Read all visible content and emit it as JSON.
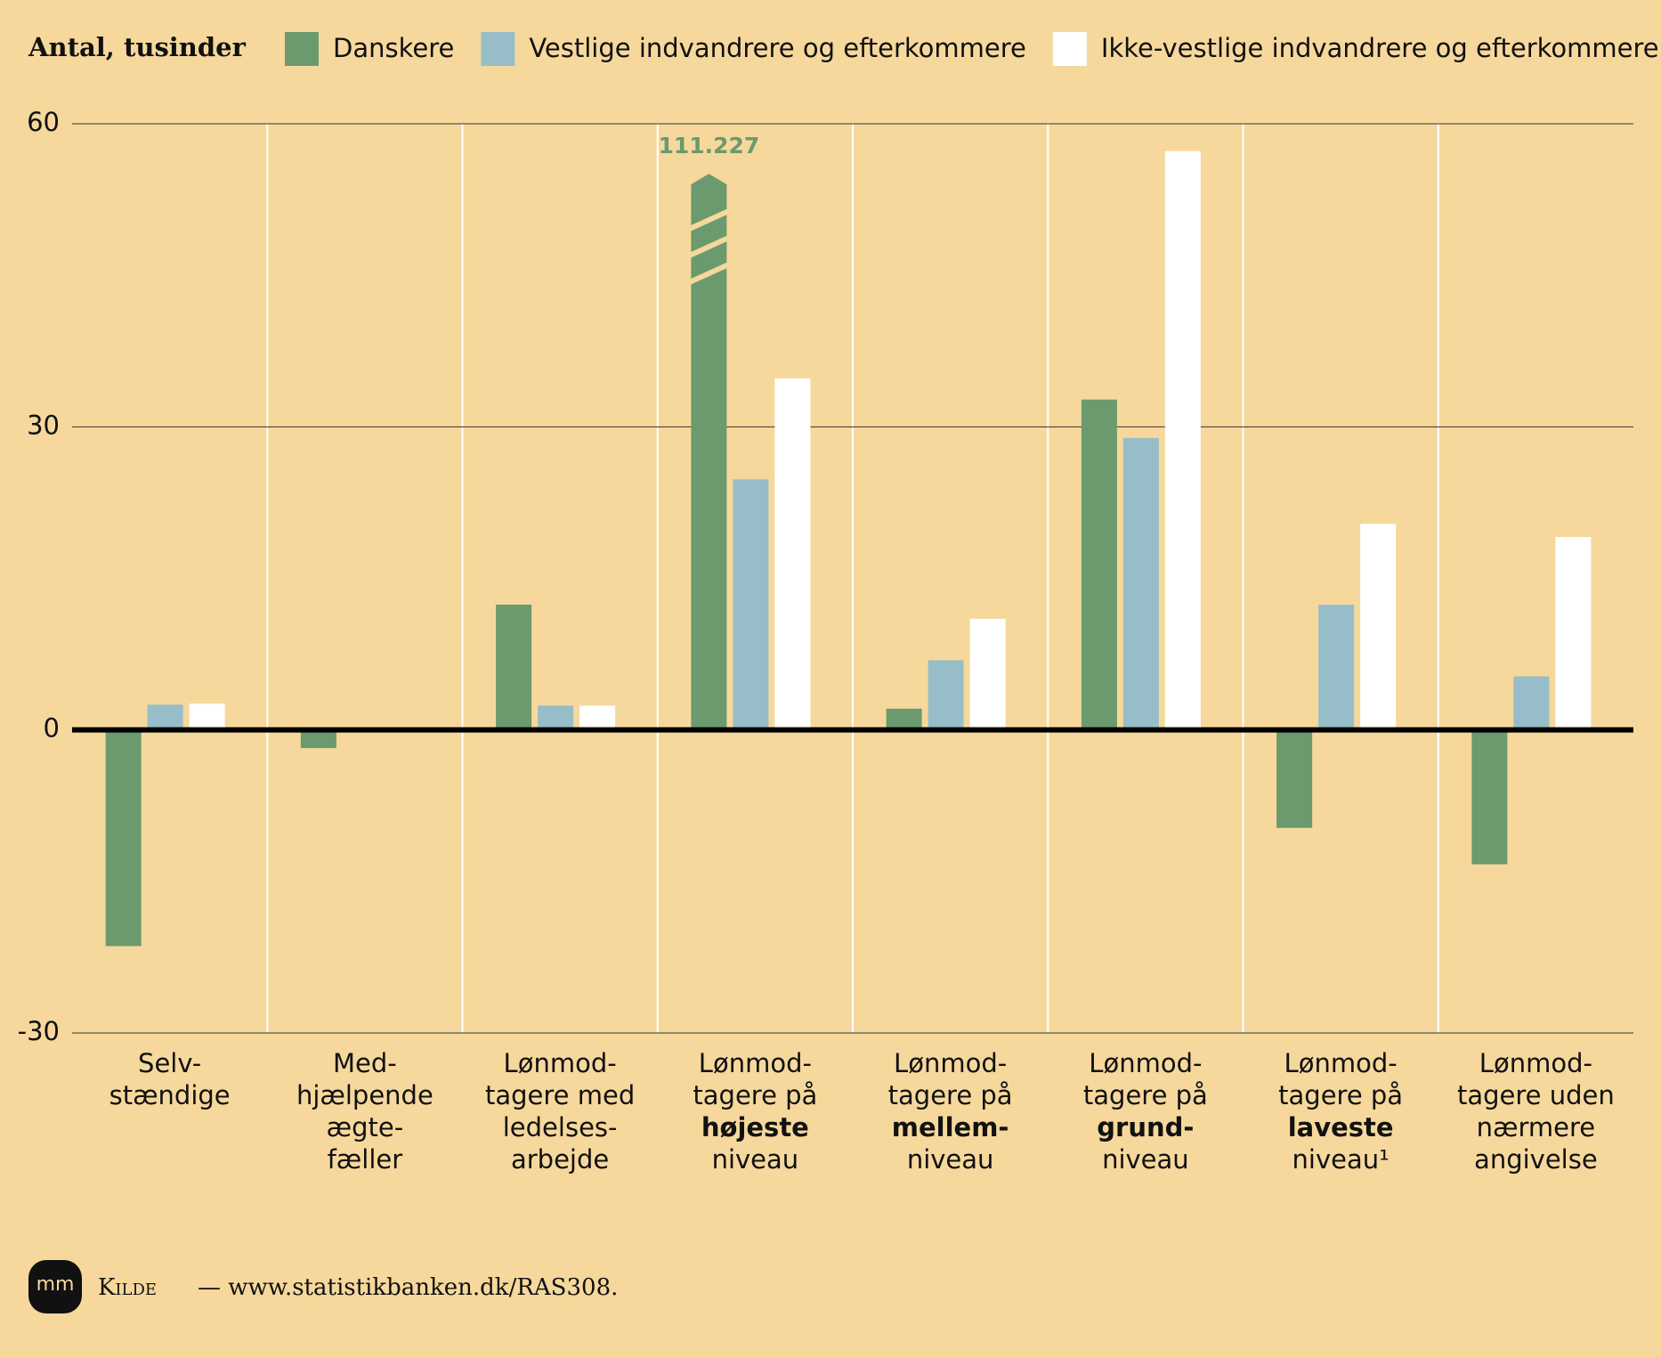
{
  "chart_data": {
    "type": "bar",
    "title": "Antal, tusinder",
    "categories": [
      [
        "Selv-",
        "stændige"
      ],
      [
        "Med-",
        "hjælpende",
        "ægte-",
        "fæller"
      ],
      [
        "Lønmod-",
        "tagere med",
        "ledelses-",
        "arbejde"
      ],
      [
        "Lønmod-",
        "tagere på",
        "højeste",
        "niveau"
      ],
      [
        "Lønmod-",
        "tagere på",
        "mellem-",
        "niveau"
      ],
      [
        "Lønmod-",
        "tagere på",
        "grund-",
        "niveau"
      ],
      [
        "Lønmod-",
        "tagere på",
        "laveste",
        "niveau¹"
      ],
      [
        "Lønmod-",
        "tagere uden",
        "nærmere",
        "angivelse"
      ]
    ],
    "bold_lines": [
      null,
      null,
      null,
      2,
      2,
      2,
      2,
      null
    ],
    "series": [
      {
        "name": "Danskere",
        "color": "#6a9a6d",
        "values": [
          -21.4,
          -1.8,
          12.4,
          111.227,
          2.1,
          32.7,
          -9.7,
          -13.3
        ],
        "value_labels": [
          null,
          null,
          null,
          "111.227",
          null,
          null,
          null,
          null
        ]
      },
      {
        "name": "Vestlige indvandrere og efterkommere",
        "color": "#97bdc8",
        "values": [
          2.5,
          null,
          2.4,
          24.8,
          6.9,
          28.9,
          12.4,
          5.3
        ]
      },
      {
        "name": "Ikke-vestlige indvandrere og efterkommere",
        "color": "#ffffff",
        "values": [
          2.6,
          null,
          2.4,
          34.8,
          11.0,
          57.3,
          20.4,
          19.1
        ]
      }
    ],
    "ylim": [
      -30,
      60
    ],
    "yticks": [
      -30,
      0,
      30,
      60
    ],
    "grid": true,
    "source_label": "Kilde",
    "source": "— www.statistikbanken.dk/RAS308.",
    "logo": "mm"
  }
}
